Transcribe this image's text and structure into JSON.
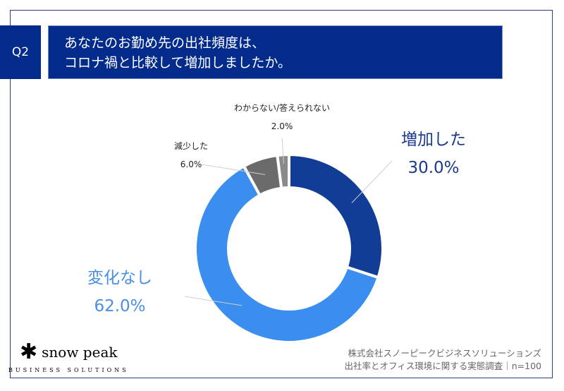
{
  "header": {
    "q_label": "Q2",
    "title_line1": "あなたのお勤め先の出社頻度は、",
    "title_line2": "コロナ禍と比較して増加しましたか。"
  },
  "chart_data": {
    "type": "pie",
    "donut": true,
    "title": "",
    "categories": [
      "増加した",
      "変化なし",
      "減少した",
      "わからない/答えられない"
    ],
    "values": [
      30.0,
      62.0,
      6.0,
      2.0
    ],
    "labels": [
      "30.0%",
      "62.0%",
      "6.0%",
      "2.0%"
    ],
    "colors": [
      "#123d96",
      "#3a8ef0",
      "#6b6b6b",
      "#8a8a8a"
    ],
    "label_colors": [
      "#1a3a8c",
      "#4a8fe0",
      "#222222",
      "#222222"
    ],
    "start": "top",
    "direction": "clockwise"
  },
  "footer": {
    "logo_text": "snow peak",
    "logo_sub": "BUSINESS SOLUTIONS",
    "source_line1": "株式会社スノーピークビジネスソリューションズ",
    "source_line2": "出社率とオフィス環境に関する実態調査｜n=100"
  }
}
